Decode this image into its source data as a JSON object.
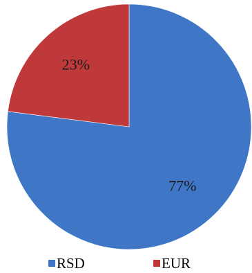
{
  "chart_data": {
    "type": "pie",
    "categories": [
      "RSD",
      "EUR"
    ],
    "values": [
      77,
      23
    ],
    "labels": [
      "77%",
      "23%"
    ],
    "colors": [
      "#3f77c6",
      "#c0393a"
    ],
    "start_angle_deg": 0,
    "direction": "clockwise",
    "legend_position": "bottom",
    "title": ""
  }
}
